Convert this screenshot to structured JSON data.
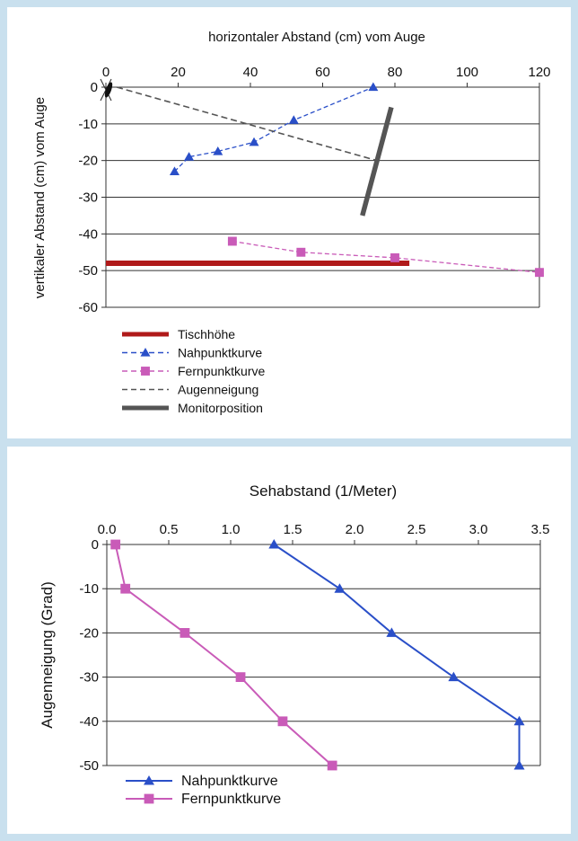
{
  "chart_data": [
    {
      "type": "line",
      "title": "",
      "xlabel": "horizontaler Abstand (cm) vom Auge",
      "ylabel": "vertikaler Abstand (cm) vom Auge",
      "xlim": [
        0,
        120
      ],
      "ylim": [
        -60,
        0
      ],
      "x_ticks": [
        "0",
        "20",
        "40",
        "60",
        "80",
        "100",
        "120"
      ],
      "y_ticks": [
        "0",
        "-10",
        "-20",
        "-30",
        "-40",
        "-50",
        "-60"
      ],
      "grid": "horizontal",
      "legend_position": "bottom-left",
      "series": [
        {
          "name": "Tischhöhe",
          "color": "#b01a1a",
          "style": "thick-solid",
          "marker": "none",
          "points": [
            [
              0,
              -48
            ],
            [
              84,
              -48
            ]
          ]
        },
        {
          "name": "Nahpunktkurve",
          "color": "#2a4fc8",
          "style": "dashed",
          "marker": "triangle",
          "points": [
            [
              19,
              -23
            ],
            [
              23,
              -19
            ],
            [
              31,
              -17.5
            ],
            [
              41,
              -15
            ],
            [
              52,
              -9
            ],
            [
              74,
              0
            ]
          ]
        },
        {
          "name": "Fernpunktkurve",
          "color": "#c95bb8",
          "style": "dashed",
          "marker": "square",
          "points": [
            [
              35,
              -42
            ],
            [
              54,
              -45
            ],
            [
              80,
              -46.5
            ],
            [
              120,
              -50.5
            ]
          ]
        },
        {
          "name": "Augenneigung",
          "color": "#555555",
          "style": "dashed",
          "marker": "none",
          "points": [
            [
              3,
              0
            ],
            [
              75,
              -20
            ]
          ]
        },
        {
          "name": "Monitorposition",
          "color": "#555555",
          "style": "thick-solid",
          "marker": "none",
          "points": [
            [
              71,
              -35
            ],
            [
              79,
              -5.5
            ]
          ]
        }
      ]
    },
    {
      "type": "line",
      "title": "",
      "xlabel": "Sehabstand (1/Meter)",
      "ylabel": "Augenneigung (Grad)",
      "xlim": [
        0,
        3.5
      ],
      "ylim": [
        -50,
        0
      ],
      "x_ticks": [
        "0.0",
        "0.5",
        "1.0",
        "1.5",
        "2.0",
        "2.5",
        "3.0",
        "3.5"
      ],
      "y_ticks": [
        "0",
        "-10",
        "-20",
        "-30",
        "-40",
        "-50"
      ],
      "grid": "horizontal",
      "legend_position": "bottom-left",
      "series": [
        {
          "name": "Nahpunktkurve",
          "color": "#2a4fc8",
          "marker": "triangle",
          "points": [
            [
              1.35,
              0
            ],
            [
              1.88,
              -10
            ],
            [
              2.3,
              -20
            ],
            [
              2.8,
              -30
            ],
            [
              3.33,
              -40
            ],
            [
              3.33,
              -50
            ]
          ]
        },
        {
          "name": "Fernpunktkurve",
          "color": "#c95bb8",
          "marker": "square",
          "points": [
            [
              0.07,
              0
            ],
            [
              0.15,
              -10
            ],
            [
              0.63,
              -20
            ],
            [
              1.08,
              -30
            ],
            [
              1.42,
              -40
            ],
            [
              1.82,
              -50
            ]
          ]
        }
      ]
    }
  ]
}
